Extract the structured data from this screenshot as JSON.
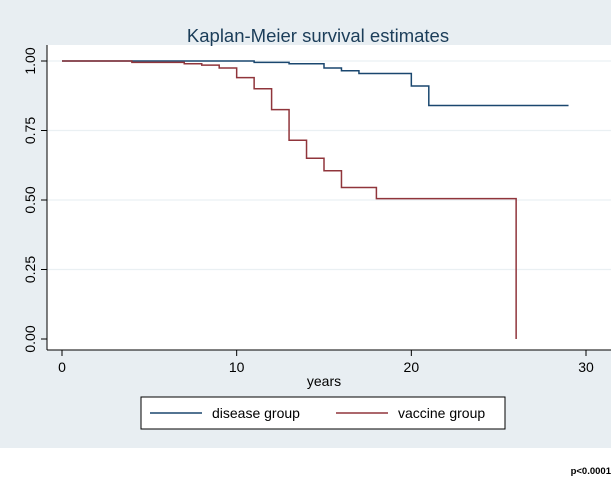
{
  "chart_data": {
    "type": "line",
    "title": "Kaplan-Meier survival estimates",
    "xlabel": "years",
    "ylabel": "",
    "xlim": [
      0,
      30
    ],
    "ylim": [
      0,
      1
    ],
    "x_ticks": [
      "0",
      "10",
      "20",
      "30"
    ],
    "y_ticks": [
      "0.00",
      "0.25",
      "0.50",
      "0.75",
      "1.00"
    ],
    "grid": true,
    "legend": "bottom",
    "series": [
      {
        "name": "disease group",
        "color": "#1a476f",
        "x": [
          0,
          11,
          13,
          15,
          16,
          17,
          20,
          21,
          29
        ],
        "y": [
          1.0,
          0.995,
          0.99,
          0.975,
          0.965,
          0.955,
          0.91,
          0.84,
          0.84
        ]
      },
      {
        "name": "vaccine group",
        "color": "#90353b",
        "x": [
          0,
          4,
          7,
          8,
          9,
          10,
          11,
          12,
          13,
          14,
          15,
          16,
          18,
          26,
          26
        ],
        "y": [
          1.0,
          0.995,
          0.99,
          0.985,
          0.975,
          0.94,
          0.9,
          0.825,
          0.715,
          0.65,
          0.605,
          0.545,
          0.505,
          0.505,
          0.0
        ]
      }
    ]
  },
  "footnote": "p<0.0001"
}
